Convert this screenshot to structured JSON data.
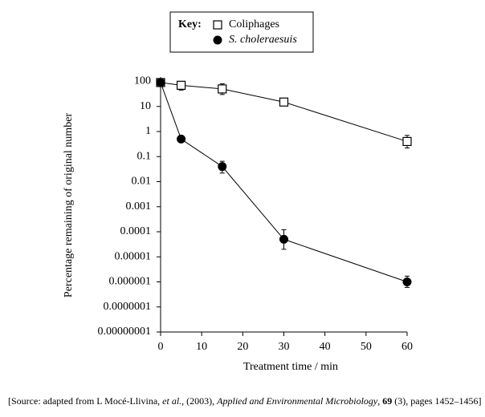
{
  "chart_data": {
    "type": "line",
    "key_title": "Key:",
    "x_label": "Treatment time / min",
    "y_label": "Percentage remaining of original number",
    "x": [
      0,
      5,
      15,
      30,
      60
    ],
    "series": [
      {
        "name": "Coliphages",
        "color": "#000000",
        "marker": "square-open",
        "values": [
          90,
          70,
          50,
          15,
          0.4
        ],
        "error_lower": [
          null,
          45,
          30,
          null,
          0.22
        ],
        "error_upper": [
          null,
          100,
          80,
          null,
          0.7
        ]
      },
      {
        "name": "S. choleraesuis",
        "color": "#000000",
        "marker": "circle-filled",
        "values": [
          90,
          0.5,
          0.04,
          5e-05,
          1e-06
        ],
        "error_lower": [
          null,
          null,
          0.022,
          2e-05,
          6e-07
        ],
        "error_upper": [
          null,
          null,
          0.065,
          0.00012,
          1.7e-06
        ]
      }
    ],
    "xlim": [
      0,
      60
    ],
    "xticks": [
      0,
      10,
      20,
      30,
      40,
      50,
      60
    ],
    "ylim": [
      1e-08,
      150
    ],
    "log_y": true,
    "yticks": [
      100,
      10,
      1,
      0.1,
      0.01,
      0.001,
      0.0001,
      1e-05,
      1e-06,
      {
        "value": 1e-07,
        "label": "0.0000001"
      },
      {
        "value": 1e-08,
        "label": "0.00000001"
      }
    ],
    "source": [
      "[Source: adapted from L Mocé-Llivina, ",
      "et al.",
      ", (2003), ",
      "Applied and Environmental Microbiology",
      ", ",
      "69",
      " (3), pages 1452–1456]"
    ]
  }
}
